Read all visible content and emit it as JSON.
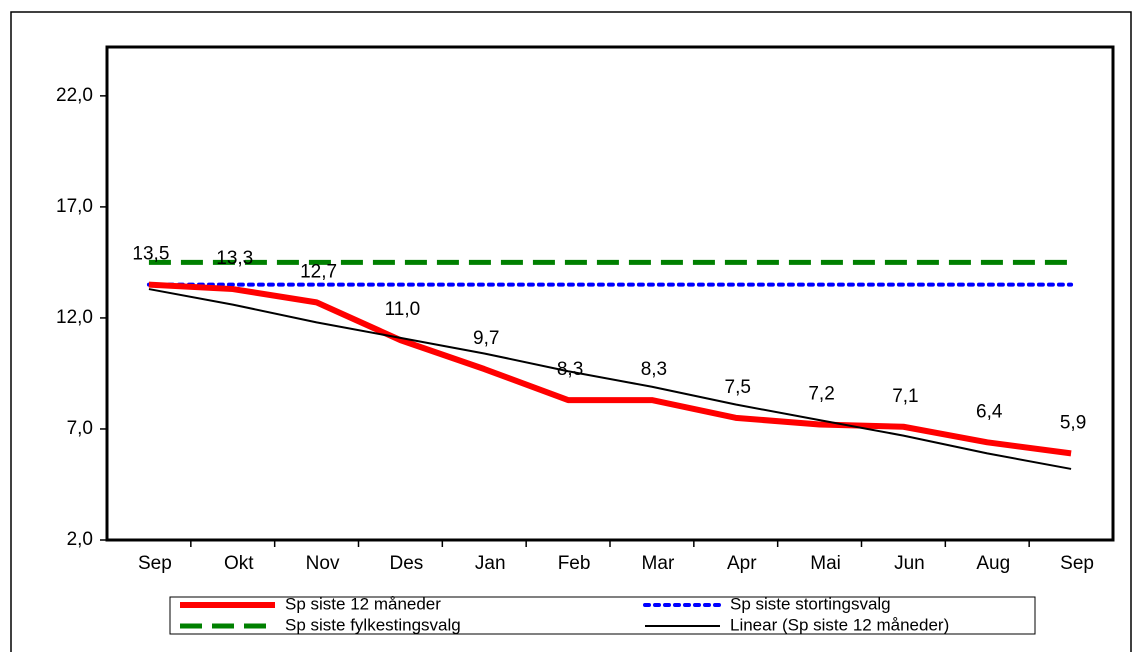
{
  "chart_data": {
    "type": "line",
    "categories": [
      "Sep",
      "Okt",
      "Nov",
      "Des",
      "Jan",
      "Feb",
      "Mar",
      "Apr",
      "Mai",
      "Jun",
      "Aug",
      "Sep"
    ],
    "series": [
      {
        "name": "Sp siste 12 måneder",
        "color": "#ff0000",
        "style": "solid",
        "line_width": 6,
        "values": [
          13.5,
          13.3,
          12.7,
          11.0,
          9.7,
          8.3,
          8.3,
          7.5,
          7.2,
          7.1,
          6.4,
          5.9
        ],
        "value_labels": [
          "13,5",
          "13,3",
          "12,7",
          "11,0",
          "9,7",
          "8,3",
          "8,3",
          "7,5",
          "7,2",
          "7,1",
          "6,4",
          "5,9"
        ]
      },
      {
        "name": "Sp siste stortingsvalg",
        "color": "#0000ff",
        "style": "dotted",
        "line_width": 4,
        "values": [
          13.5,
          13.5,
          13.5,
          13.5,
          13.5,
          13.5,
          13.5,
          13.5,
          13.5,
          13.5,
          13.5,
          13.5
        ]
      },
      {
        "name": "Sp siste fylkestingsvalg",
        "color": "#008000",
        "style": "dashed",
        "line_width": 5,
        "values": [
          14.5,
          14.5,
          14.5,
          14.5,
          14.5,
          14.5,
          14.5,
          14.5,
          14.5,
          14.5,
          14.5,
          14.5
        ]
      },
      {
        "name": "Linear (Sp siste 12 måneder)",
        "color": "#000000",
        "style": "solid",
        "line_width": 2,
        "values": [
          13.3,
          12.6,
          11.8,
          11.1,
          10.4,
          9.6,
          8.9,
          8.1,
          7.4,
          6.7,
          5.9,
          5.2
        ]
      }
    ],
    "ylim": [
      2,
      24.2
    ],
    "yticks": [
      {
        "value": 2,
        "label": "2,0"
      },
      {
        "value": 7,
        "label": "7,0"
      },
      {
        "value": 12,
        "label": "12,0"
      },
      {
        "value": 17,
        "label": "17,0"
      },
      {
        "value": 22,
        "label": "22,0"
      }
    ],
    "grid": false,
    "legend": "bottom"
  }
}
